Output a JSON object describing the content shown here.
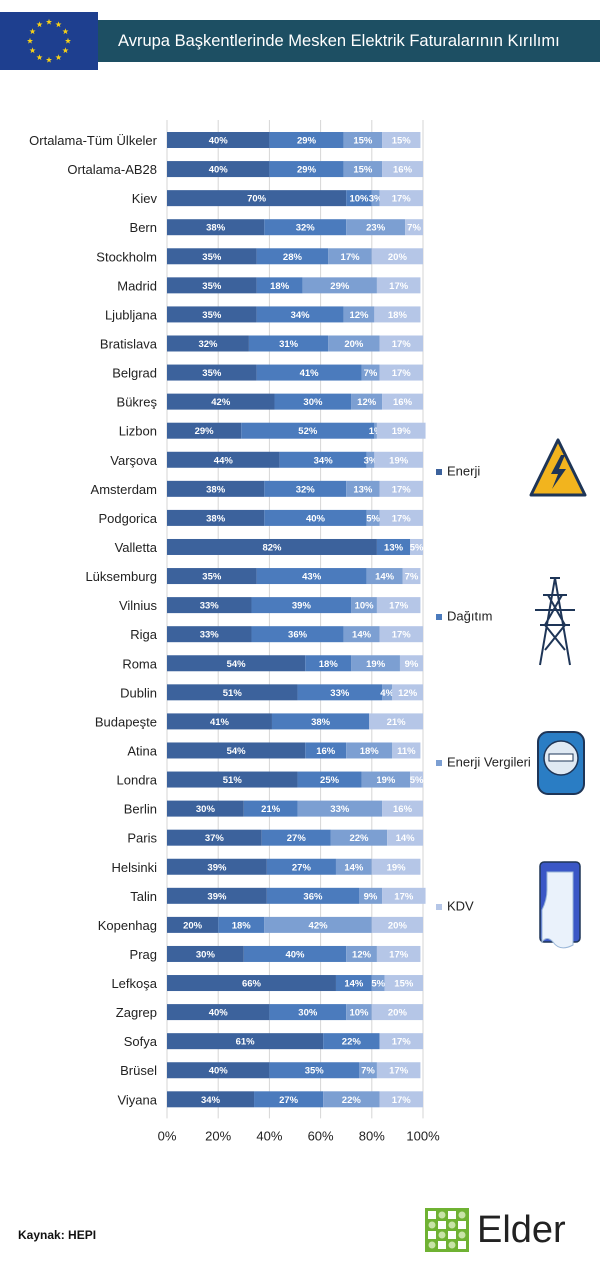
{
  "title": "Avrupa Başkentlerinde Mesken Elektrik Faturalarının Kırılımı",
  "source": "Kaynak: HEPI",
  "logo_text": "Elder",
  "colors": {
    "title_bg": "#1d4f63",
    "flag_bg": "#1e3f8f",
    "flag_star": "#f7d117",
    "grid": "#d6d6d6",
    "segment_text": "#ffffff"
  },
  "icons": [
    "energy-lightning-icon",
    "transmission-tower-icon",
    "electric-meter-icon",
    "receipt-icon"
  ],
  "chart_data": {
    "type": "bar",
    "orientation": "horizontal",
    "stacked": true,
    "title": "Avrupa Başkentlerinde Mesken Elektrik Faturalarının Kırılımı",
    "xlim": [
      0,
      100
    ],
    "x_ticks": [
      "0%",
      "20%",
      "40%",
      "60%",
      "80%",
      "100%"
    ],
    "grid": true,
    "legend_position": "right",
    "categories": [
      "Ortalama-Tüm Ülkeler",
      "Ortalama-AB28",
      "Kiev",
      "Bern",
      "Stockholm",
      "Madrid",
      "Ljubljana",
      "Bratislava",
      "Belgrad",
      "Bükreş",
      "Lizbon",
      "Varşova",
      "Amsterdam",
      "Podgorica",
      "Valletta",
      "Lüksemburg",
      "Vilnius",
      "Riga",
      "Roma",
      "Dublin",
      "Budapeşte",
      "Atina",
      "Londra",
      "Berlin",
      "Paris",
      "Helsinki",
      "Talin",
      "Kopenhag",
      "Prag",
      "Lefkoşa",
      "Zagrep",
      "Sofya",
      "Brüsel",
      "Viyana"
    ],
    "series": [
      {
        "name": "Enerji",
        "color": "#3c629c",
        "values": [
          40,
          40,
          70,
          38,
          35,
          35,
          35,
          32,
          35,
          42,
          29,
          44,
          38,
          38,
          82,
          35,
          33,
          33,
          54,
          51,
          41,
          54,
          51,
          30,
          37,
          39,
          39,
          20,
          30,
          66,
          40,
          61,
          40,
          34
        ],
        "labels": [
          "40%",
          "40%",
          "70%",
          "38%",
          "35%",
          "35%",
          "35%",
          "32%",
          "35%",
          "42%",
          "29%",
          "44%",
          "38%",
          "38%",
          "82%",
          "35%",
          "33%",
          "33%",
          "54%",
          "51%",
          "41%",
          "54%",
          "51%",
          "30%",
          "37%",
          "39%",
          "39%",
          "20%",
          "30%",
          "66%",
          "40%",
          "61%",
          "40%",
          "34%"
        ]
      },
      {
        "name": "Dağıtım",
        "color": "#4b7bbd",
        "values": [
          29,
          29,
          10,
          32,
          28,
          18,
          34,
          31,
          41,
          30,
          52,
          34,
          32,
          40,
          13,
          43,
          39,
          36,
          18,
          33,
          38,
          16,
          25,
          21,
          27,
          27,
          36,
          18,
          40,
          14,
          30,
          22,
          35,
          27
        ],
        "labels": [
          "29%",
          "29%",
          "10%",
          "32%",
          "28%",
          "18%",
          "34%",
          "31%",
          "41%",
          "30%",
          "52%",
          "34%",
          "32%",
          "40%",
          "13%",
          "43%",
          "39%",
          "36%",
          "18%",
          "33%",
          "38%",
          "16%",
          "25%",
          "21%",
          "27%",
          "27%",
          "36%",
          "18%",
          "40%",
          "14%",
          "30%",
          "22%",
          "35%",
          "27%"
        ]
      },
      {
        "name": "Enerji Vergileri",
        "color": "#7c9fd2",
        "values": [
          15,
          15,
          3,
          23,
          17,
          29,
          12,
          20,
          7,
          12,
          1,
          3,
          13,
          5,
          0,
          14,
          10,
          14,
          19,
          4,
          0,
          18,
          19,
          33,
          22,
          14,
          9,
          42,
          12,
          5,
          10,
          0,
          7,
          22
        ],
        "labels": [
          "15%",
          "15%",
          "3%",
          "23%",
          "17%",
          "29%",
          "12%",
          "20%",
          "7%",
          "12%",
          "1%",
          "3%",
          "13%",
          "5%",
          "",
          "14%",
          "10%",
          "14%",
          "19%",
          "4%",
          "",
          "18%",
          "19%",
          "33%",
          "22%",
          "14%",
          "9%",
          "42%",
          "12%",
          "5%",
          "10%",
          "",
          "7%",
          "22%"
        ]
      },
      {
        "name": "KDV",
        "color": "#b5c6e7",
        "values": [
          15,
          16,
          17,
          7,
          20,
          17,
          18,
          17,
          17,
          16,
          19,
          19,
          17,
          17,
          5,
          7,
          17,
          17,
          9,
          12,
          21,
          11,
          5,
          16,
          14,
          19,
          17,
          20,
          17,
          15,
          20,
          17,
          17,
          17
        ],
        "labels": [
          "15%",
          "16%",
          "17%",
          "7%",
          "20%",
          "17%",
          "18%",
          "17%",
          "17%",
          "16%",
          "19%",
          "19%",
          "17%",
          "17%",
          "5%",
          "7%",
          "17%",
          "17%",
          "9%",
          "12%",
          "21%",
          "11%",
          "5%",
          "16%",
          "14%",
          "19%",
          "17%",
          "20%",
          "17%",
          "15%",
          "20%",
          "17%",
          "17%",
          "17%"
        ]
      }
    ]
  }
}
